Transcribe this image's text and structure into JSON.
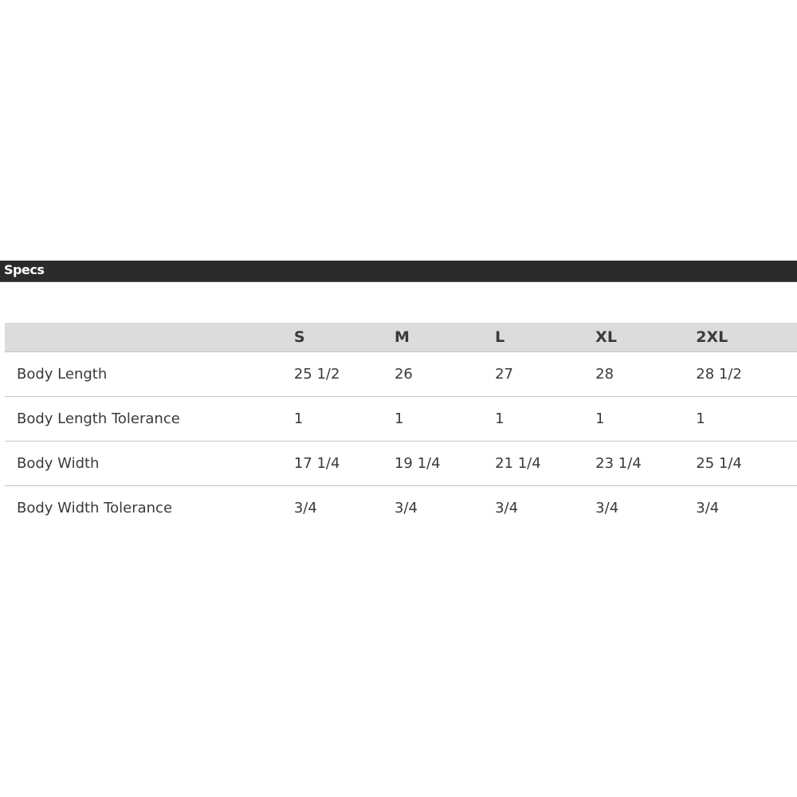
{
  "section_title": "Specs",
  "table": {
    "columns": [
      "",
      "S",
      "M",
      "L",
      "XL",
      "2XL"
    ],
    "rows": [
      {
        "label": "Body Length",
        "values": [
          "25 1/2",
          "26",
          "27",
          "28",
          "28 1/2"
        ]
      },
      {
        "label": "Body Length Tolerance",
        "values": [
          "1",
          "1",
          "1",
          "1",
          "1"
        ]
      },
      {
        "label": "Body Width",
        "values": [
          "17 1/4",
          "19 1/4",
          "21 1/4",
          "23 1/4",
          "25 1/4"
        ]
      },
      {
        "label": "Body Width Tolerance",
        "values": [
          "3/4",
          "3/4",
          "3/4",
          "3/4",
          "3/4"
        ]
      }
    ]
  }
}
